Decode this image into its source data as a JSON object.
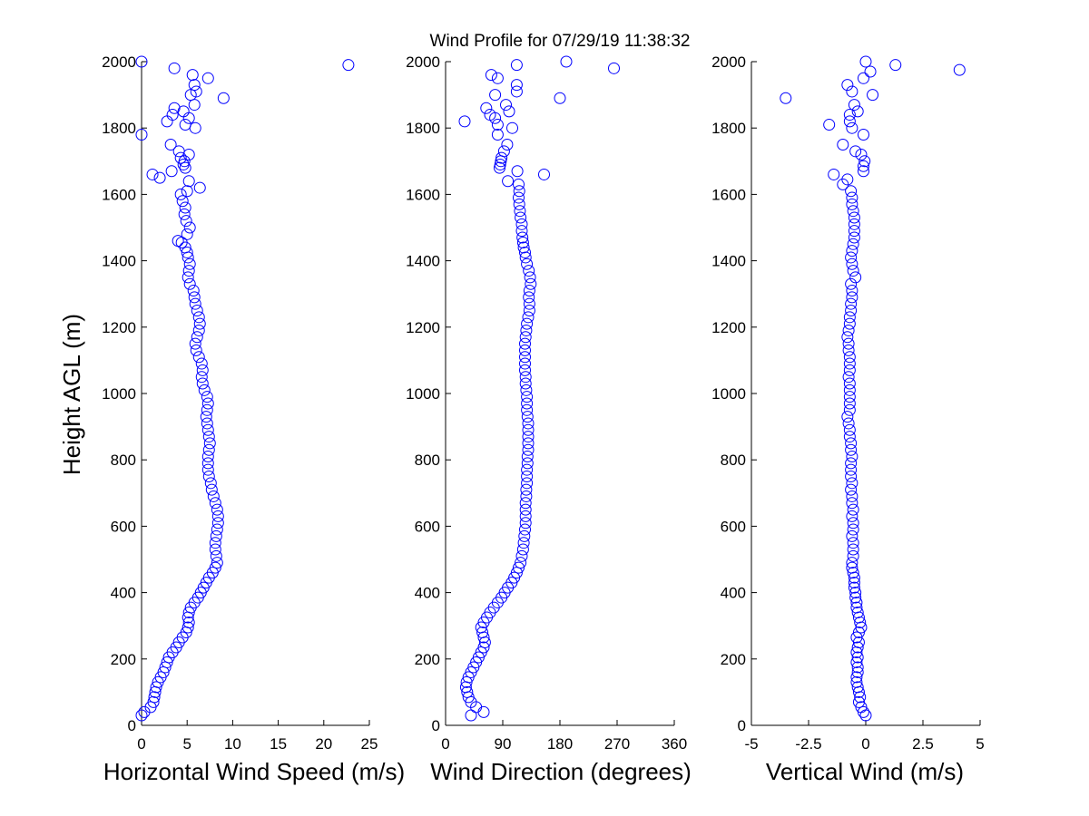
{
  "chart_data": [
    {
      "type": "scatter",
      "title": "Wind Profile for  07/29/19 11:38:32",
      "xlabel": "Horizontal Wind Speed (m/s)",
      "ylabel": "Height AGL (m)",
      "xlim": [
        0,
        25
      ],
      "ylim": [
        0,
        2000
      ],
      "xticks": [
        "0",
        "5",
        "10",
        "15",
        "20",
        "25"
      ],
      "yticks": [
        "0",
        "200",
        "400",
        "600",
        "800",
        "1000",
        "1200",
        "1400",
        "1600",
        "1800",
        "2000"
      ],
      "marker": "open-circle",
      "color": "#0000ff",
      "points": [
        [
          0,
          30
        ],
        [
          0.3,
          40
        ],
        [
          1,
          55
        ],
        [
          1.3,
          70
        ],
        [
          1.4,
          85
        ],
        [
          1.5,
          100
        ],
        [
          1.6,
          115
        ],
        [
          1.8,
          130
        ],
        [
          2.1,
          145
        ],
        [
          2.4,
          160
        ],
        [
          2.6,
          175
        ],
        [
          2.8,
          190
        ],
        [
          3,
          205
        ],
        [
          3.4,
          220
        ],
        [
          3.8,
          235
        ],
        [
          4.1,
          250
        ],
        [
          4.5,
          265
        ],
        [
          4.9,
          280
        ],
        [
          5.1,
          295
        ],
        [
          5.2,
          310
        ],
        [
          5.1,
          325
        ],
        [
          5.2,
          340
        ],
        [
          5.4,
          355
        ],
        [
          5.8,
          370
        ],
        [
          6.2,
          385
        ],
        [
          6.5,
          400
        ],
        [
          6.8,
          415
        ],
        [
          7.1,
          430
        ],
        [
          7.4,
          445
        ],
        [
          7.8,
          460
        ],
        [
          8.1,
          475
        ],
        [
          8.3,
          490
        ],
        [
          8.2,
          510
        ],
        [
          8.1,
          530
        ],
        [
          8.1,
          550
        ],
        [
          8.2,
          570
        ],
        [
          8.3,
          590
        ],
        [
          8.4,
          610
        ],
        [
          8.4,
          630
        ],
        [
          8.3,
          650
        ],
        [
          8.1,
          670
        ],
        [
          7.9,
          690
        ],
        [
          7.7,
          710
        ],
        [
          7.6,
          730
        ],
        [
          7.4,
          750
        ],
        [
          7.3,
          770
        ],
        [
          7.3,
          790
        ],
        [
          7.3,
          810
        ],
        [
          7.4,
          830
        ],
        [
          7.5,
          850
        ],
        [
          7.4,
          870
        ],
        [
          7.3,
          890
        ],
        [
          7.2,
          910
        ],
        [
          7.1,
          930
        ],
        [
          7.2,
          950
        ],
        [
          7.3,
          970
        ],
        [
          7.2,
          990
        ],
        [
          6.9,
          1010
        ],
        [
          6.7,
          1030
        ],
        [
          6.6,
          1050
        ],
        [
          6.7,
          1070
        ],
        [
          6.6,
          1090
        ],
        [
          6.3,
          1110
        ],
        [
          6,
          1130
        ],
        [
          5.9,
          1150
        ],
        [
          6.1,
          1170
        ],
        [
          6.3,
          1190
        ],
        [
          6.4,
          1210
        ],
        [
          6.3,
          1230
        ],
        [
          6.1,
          1250
        ],
        [
          5.9,
          1270
        ],
        [
          5.8,
          1290
        ],
        [
          5.7,
          1310
        ],
        [
          5.3,
          1330
        ],
        [
          5.1,
          1350
        ],
        [
          5.2,
          1370
        ],
        [
          5.3,
          1390
        ],
        [
          5.1,
          1410
        ],
        [
          5,
          1425
        ],
        [
          4.8,
          1440
        ],
        [
          4.4,
          1455
        ],
        [
          4,
          1460
        ],
        [
          5,
          1480
        ],
        [
          5.3,
          1500
        ],
        [
          4.9,
          1520
        ],
        [
          4.7,
          1540
        ],
        [
          4.8,
          1560
        ],
        [
          4.5,
          1580
        ],
        [
          4.3,
          1600
        ],
        [
          5,
          1610
        ],
        [
          6.4,
          1620
        ],
        [
          5.2,
          1640
        ],
        [
          2,
          1650
        ],
        [
          1.2,
          1660
        ],
        [
          3.3,
          1670
        ],
        [
          4.8,
          1680
        ],
        [
          4.6,
          1690
        ],
        [
          4.7,
          1700
        ],
        [
          4.3,
          1710
        ],
        [
          5.2,
          1720
        ],
        [
          4.1,
          1730
        ],
        [
          3.2,
          1750
        ],
        [
          0,
          1780
        ],
        [
          5.9,
          1800
        ],
        [
          4.8,
          1810
        ],
        [
          2.8,
          1820
        ],
        [
          5.2,
          1830
        ],
        [
          3.4,
          1840
        ],
        [
          4.6,
          1850
        ],
        [
          3.6,
          1860
        ],
        [
          5.8,
          1870
        ],
        [
          9,
          1890
        ],
        [
          5.4,
          1900
        ],
        [
          6,
          1910
        ],
        [
          5.8,
          1930
        ],
        [
          7.3,
          1950
        ],
        [
          5.6,
          1960
        ],
        [
          3.6,
          1980
        ],
        [
          22.7,
          1990
        ],
        [
          0,
          2000
        ]
      ]
    },
    {
      "type": "scatter",
      "xlabel": "Wind Direction (degrees)",
      "xlim": [
        0,
        360
      ],
      "ylim": [
        0,
        2000
      ],
      "xticks": [
        "0",
        "90",
        "180",
        "270",
        "360"
      ],
      "yticks": [
        "0",
        "200",
        "400",
        "600",
        "800",
        "1000",
        "1200",
        "1400",
        "1600",
        "1800",
        "2000"
      ],
      "marker": "open-circle",
      "color": "#0000ff",
      "points": [
        [
          40,
          30
        ],
        [
          60,
          40
        ],
        [
          48,
          55
        ],
        [
          40,
          70
        ],
        [
          36,
          85
        ],
        [
          34,
          100
        ],
        [
          32,
          115
        ],
        [
          33,
          130
        ],
        [
          36,
          145
        ],
        [
          40,
          160
        ],
        [
          44,
          175
        ],
        [
          48,
          190
        ],
        [
          52,
          205
        ],
        [
          56,
          220
        ],
        [
          60,
          235
        ],
        [
          62,
          250
        ],
        [
          60,
          265
        ],
        [
          58,
          280
        ],
        [
          56,
          295
        ],
        [
          60,
          310
        ],
        [
          65,
          325
        ],
        [
          70,
          340
        ],
        [
          76,
          355
        ],
        [
          82,
          370
        ],
        [
          88,
          385
        ],
        [
          93,
          400
        ],
        [
          98,
          415
        ],
        [
          104,
          430
        ],
        [
          108,
          445
        ],
        [
          112,
          460
        ],
        [
          115,
          475
        ],
        [
          118,
          490
        ],
        [
          120,
          510
        ],
        [
          122,
          530
        ],
        [
          123,
          550
        ],
        [
          124,
          570
        ],
        [
          125,
          590
        ],
        [
          126,
          610
        ],
        [
          126,
          630
        ],
        [
          126,
          650
        ],
        [
          126,
          670
        ],
        [
          127,
          690
        ],
        [
          127,
          710
        ],
        [
          128,
          730
        ],
        [
          128,
          750
        ],
        [
          128,
          770
        ],
        [
          129,
          790
        ],
        [
          129,
          810
        ],
        [
          130,
          830
        ],
        [
          130,
          850
        ],
        [
          130,
          870
        ],
        [
          130,
          890
        ],
        [
          130,
          910
        ],
        [
          129,
          930
        ],
        [
          128,
          950
        ],
        [
          128,
          970
        ],
        [
          128,
          990
        ],
        [
          127,
          1010
        ],
        [
          126,
          1030
        ],
        [
          126,
          1050
        ],
        [
          125,
          1070
        ],
        [
          125,
          1090
        ],
        [
          125,
          1110
        ],
        [
          125,
          1130
        ],
        [
          125,
          1150
        ],
        [
          126,
          1170
        ],
        [
          127,
          1190
        ],
        [
          128,
          1210
        ],
        [
          130,
          1230
        ],
        [
          132,
          1250
        ],
        [
          132,
          1270
        ],
        [
          131,
          1290
        ],
        [
          132,
          1310
        ],
        [
          134,
          1330
        ],
        [
          133,
          1350
        ],
        [
          131,
          1370
        ],
        [
          128,
          1390
        ],
        [
          126,
          1410
        ],
        [
          125,
          1425
        ],
        [
          123,
          1440
        ],
        [
          122,
          1455
        ],
        [
          121,
          1470
        ],
        [
          120,
          1490
        ],
        [
          120,
          1510
        ],
        [
          118,
          1530
        ],
        [
          117,
          1550
        ],
        [
          116,
          1570
        ],
        [
          115,
          1590
        ],
        [
          116,
          1610
        ],
        [
          115,
          1630
        ],
        [
          98,
          1640
        ],
        [
          155,
          1660
        ],
        [
          113,
          1670
        ],
        [
          85,
          1680
        ],
        [
          86,
          1690
        ],
        [
          87,
          1700
        ],
        [
          88,
          1710
        ],
        [
          92,
          1730
        ],
        [
          97,
          1750
        ],
        [
          82,
          1780
        ],
        [
          105,
          1800
        ],
        [
          82,
          1810
        ],
        [
          30,
          1820
        ],
        [
          78,
          1830
        ],
        [
          70,
          1840
        ],
        [
          100,
          1850
        ],
        [
          64,
          1860
        ],
        [
          95,
          1870
        ],
        [
          180,
          1890
        ],
        [
          78,
          1900
        ],
        [
          112,
          1910
        ],
        [
          112,
          1930
        ],
        [
          82,
          1950
        ],
        [
          72,
          1960
        ],
        [
          265,
          1980
        ],
        [
          112,
          1990
        ],
        [
          190,
          2000
        ]
      ]
    },
    {
      "type": "scatter",
      "xlabel": "Vertical Wind (m/s)",
      "xlim": [
        -5,
        5
      ],
      "ylim": [
        0,
        2000
      ],
      "xticks": [
        "-5",
        "-2.5",
        "0",
        "2.5",
        "5"
      ],
      "yticks": [
        "0",
        "200",
        "400",
        "600",
        "800",
        "1000",
        "1200",
        "1400",
        "1600",
        "1800",
        "2000"
      ],
      "marker": "open-circle",
      "color": "#0000ff",
      "points": [
        [
          0,
          30
        ],
        [
          -0.1,
          40
        ],
        [
          -0.2,
          55
        ],
        [
          -0.3,
          70
        ],
        [
          -0.25,
          85
        ],
        [
          -0.3,
          100
        ],
        [
          -0.35,
          115
        ],
        [
          -0.4,
          130
        ],
        [
          -0.4,
          145
        ],
        [
          -0.35,
          160
        ],
        [
          -0.35,
          175
        ],
        [
          -0.4,
          190
        ],
        [
          -0.35,
          205
        ],
        [
          -0.4,
          220
        ],
        [
          -0.35,
          235
        ],
        [
          -0.3,
          250
        ],
        [
          -0.4,
          265
        ],
        [
          -0.3,
          280
        ],
        [
          -0.2,
          295
        ],
        [
          -0.25,
          310
        ],
        [
          -0.3,
          325
        ],
        [
          -0.35,
          340
        ],
        [
          -0.4,
          355
        ],
        [
          -0.4,
          370
        ],
        [
          -0.45,
          385
        ],
        [
          -0.45,
          400
        ],
        [
          -0.5,
          415
        ],
        [
          -0.5,
          430
        ],
        [
          -0.5,
          445
        ],
        [
          -0.55,
          460
        ],
        [
          -0.6,
          475
        ],
        [
          -0.6,
          490
        ],
        [
          -0.55,
          510
        ],
        [
          -0.55,
          530
        ],
        [
          -0.55,
          550
        ],
        [
          -0.6,
          570
        ],
        [
          -0.55,
          590
        ],
        [
          -0.55,
          610
        ],
        [
          -0.6,
          630
        ],
        [
          -0.55,
          650
        ],
        [
          -0.6,
          670
        ],
        [
          -0.6,
          690
        ],
        [
          -0.65,
          710
        ],
        [
          -0.6,
          730
        ],
        [
          -0.65,
          750
        ],
        [
          -0.65,
          770
        ],
        [
          -0.65,
          790
        ],
        [
          -0.6,
          810
        ],
        [
          -0.65,
          830
        ],
        [
          -0.65,
          850
        ],
        [
          -0.7,
          870
        ],
        [
          -0.7,
          890
        ],
        [
          -0.75,
          910
        ],
        [
          -0.8,
          930
        ],
        [
          -0.7,
          950
        ],
        [
          -0.7,
          970
        ],
        [
          -0.7,
          990
        ],
        [
          -0.7,
          1010
        ],
        [
          -0.7,
          1030
        ],
        [
          -0.75,
          1050
        ],
        [
          -0.7,
          1070
        ],
        [
          -0.7,
          1090
        ],
        [
          -0.7,
          1110
        ],
        [
          -0.75,
          1130
        ],
        [
          -0.75,
          1150
        ],
        [
          -0.8,
          1170
        ],
        [
          -0.75,
          1190
        ],
        [
          -0.7,
          1210
        ],
        [
          -0.7,
          1230
        ],
        [
          -0.65,
          1250
        ],
        [
          -0.65,
          1270
        ],
        [
          -0.6,
          1290
        ],
        [
          -0.6,
          1310
        ],
        [
          -0.65,
          1330
        ],
        [
          -0.45,
          1350
        ],
        [
          -0.55,
          1370
        ],
        [
          -0.6,
          1390
        ],
        [
          -0.65,
          1410
        ],
        [
          -0.6,
          1430
        ],
        [
          -0.55,
          1450
        ],
        [
          -0.5,
          1470
        ],
        [
          -0.5,
          1490
        ],
        [
          -0.5,
          1510
        ],
        [
          -0.5,
          1530
        ],
        [
          -0.55,
          1550
        ],
        [
          -0.6,
          1570
        ],
        [
          -0.6,
          1590
        ],
        [
          -0.65,
          1610
        ],
        [
          -1,
          1630
        ],
        [
          -0.8,
          1645
        ],
        [
          -1.4,
          1660
        ],
        [
          -0.1,
          1670
        ],
        [
          -0.1,
          1685
        ],
        [
          -0.05,
          1700
        ],
        [
          -0.2,
          1720
        ],
        [
          -0.45,
          1730
        ],
        [
          -1,
          1750
        ],
        [
          -0.1,
          1780
        ],
        [
          -0.6,
          1800
        ],
        [
          -1.6,
          1810
        ],
        [
          -0.7,
          1820
        ],
        [
          -0.7,
          1840
        ],
        [
          -0.35,
          1850
        ],
        [
          -0.5,
          1870
        ],
        [
          -3.5,
          1890
        ],
        [
          0.3,
          1900
        ],
        [
          -0.6,
          1910
        ],
        [
          -0.8,
          1930
        ],
        [
          -0.1,
          1950
        ],
        [
          0.2,
          1970
        ],
        [
          4.1,
          1975
        ],
        [
          1.3,
          1990
        ],
        [
          0,
          2000
        ]
      ]
    }
  ]
}
